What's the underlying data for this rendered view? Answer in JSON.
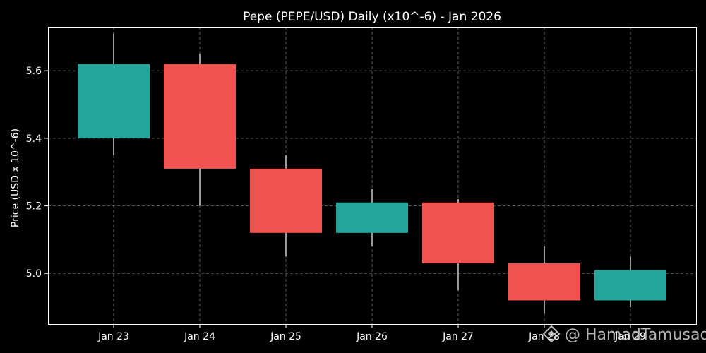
{
  "chart_data": {
    "type": "candlestick",
    "title": "Pepe (PEPE/USD) Daily (x10^-6) - Jan 2026",
    "xlabel": "",
    "ylabel": "Price (USD x 10^-6)",
    "ylim": [
      4.85,
      5.73
    ],
    "yticks": [
      5.0,
      5.2,
      5.4,
      5.6
    ],
    "ytick_labels": [
      "5.0",
      "5.2",
      "5.4",
      "5.6"
    ],
    "grid": true,
    "up_color": "#26a69a",
    "down_color": "#ef5350",
    "candles": [
      {
        "date": "Jan 23",
        "open": 5.4,
        "high": 5.71,
        "low": 5.35,
        "close": 5.62
      },
      {
        "date": "Jan 24",
        "open": 5.62,
        "high": 5.65,
        "low": 5.2,
        "close": 5.31
      },
      {
        "date": "Jan 25",
        "open": 5.31,
        "high": 5.35,
        "low": 5.05,
        "close": 5.12
      },
      {
        "date": "Jan 26",
        "open": 5.12,
        "high": 5.25,
        "low": 5.08,
        "close": 5.21
      },
      {
        "date": "Jan 27",
        "open": 5.21,
        "high": 5.22,
        "low": 4.95,
        "close": 5.03
      },
      {
        "date": "Jan 28",
        "open": 5.03,
        "high": 5.08,
        "low": 4.88,
        "close": 4.92
      },
      {
        "date": "Jan 29",
        "open": 4.92,
        "high": 5.05,
        "low": 4.9,
        "close": 5.01
      }
    ]
  },
  "watermark": {
    "text": "@ HamadTamusadi",
    "icon": "diamond-logo-icon"
  }
}
